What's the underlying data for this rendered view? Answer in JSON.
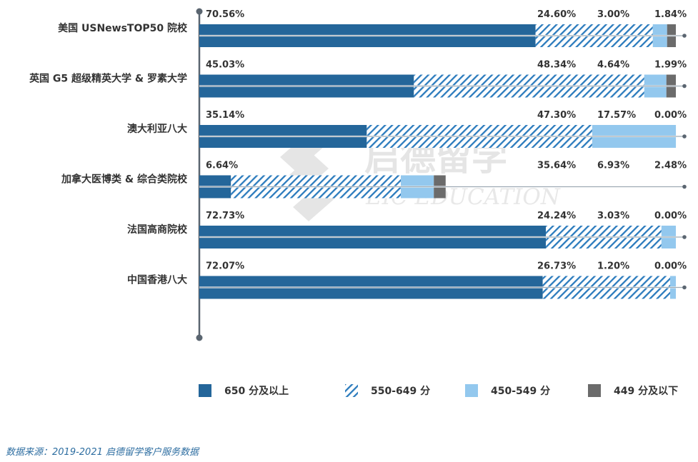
{
  "chart_data": {
    "type": "bar",
    "orientation": "horizontal",
    "stacked": true,
    "categories": [
      "美国 USNewsTOP50 院校",
      "英国 G5 超级精英大学 & 罗素大学",
      "澳大利亚八大",
      "加拿大医博类 & 综合类院校",
      "法国高商院校",
      "中国香港八大"
    ],
    "series": [
      {
        "name": "650 分及以上",
        "color": "#24669a",
        "pattern": "solid",
        "values": [
          70.56,
          45.03,
          35.14,
          6.64,
          72.73,
          72.07
        ],
        "labels": [
          "70.56%",
          "45.03%",
          "35.14%",
          "6.64%",
          "72.73%",
          "72.07%"
        ]
      },
      {
        "name": "550-649 分",
        "color": "#2b7bbd",
        "pattern": "hatch",
        "values": [
          24.6,
          48.34,
          47.3,
          35.64,
          24.24,
          26.73
        ],
        "labels": [
          "24.60%",
          "48.34%",
          "47.30%",
          "35.64%",
          "24.24%",
          "26.73%"
        ]
      },
      {
        "name": "450-549 分",
        "color": "#93c8ee",
        "pattern": "solid",
        "values": [
          3.0,
          4.64,
          17.57,
          6.93,
          3.03,
          1.2
        ],
        "labels": [
          "3.00%",
          "4.64%",
          "17.57%",
          "6.93%",
          "3.03%",
          "1.20%"
        ]
      },
      {
        "name": "449 分及以下",
        "color": "#6b6b6b",
        "pattern": "solid",
        "values": [
          1.84,
          1.99,
          0.0,
          2.48,
          0.0,
          0.0
        ],
        "labels": [
          "1.84%",
          "1.99%",
          "0.00%",
          "2.48%",
          "0.00%",
          "0.00%"
        ]
      }
    ],
    "xlim": [
      0,
      100
    ],
    "legend_position": "bottom",
    "grid": false
  },
  "source_note": "数据来源：2019-2021 启德留学客户服务数据",
  "watermark": {
    "cn": "启德留学",
    "en": "EIC EDUCATION"
  }
}
